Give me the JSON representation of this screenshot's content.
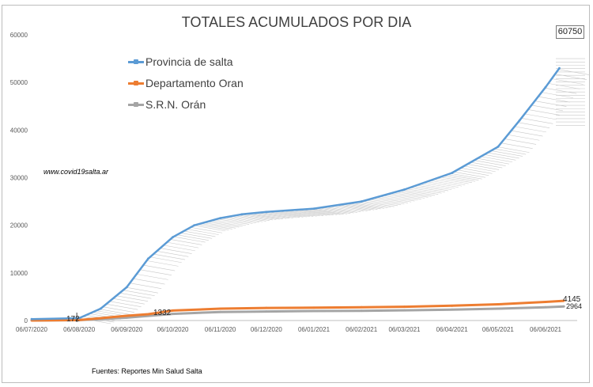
{
  "chart_data": {
    "type": "line",
    "title": "TOTALES ACUMULADOS POR DIA",
    "xlabel": "",
    "ylabel": "",
    "ylim": [
      0,
      60000
    ],
    "yticks": [
      0,
      10000,
      20000,
      30000,
      40000,
      50000,
      60000
    ],
    "xticks": [
      "06/07/2020",
      "06/08/2020",
      "06/09/2020",
      "06/10/2020",
      "06/11/2020",
      "06/12/2020",
      "06/01/2021",
      "06/02/2021",
      "06/03/2021",
      "06/04/2021",
      "06/05/2021",
      "06/06/2021"
    ],
    "legend_position": "top-left",
    "grid": false,
    "series": [
      {
        "name": "Provincia de salta",
        "color": "#5b9bd5",
        "x": [
          "06/07/2020",
          "06/08/2020",
          "20/08/2020",
          "06/09/2020",
          "20/09/2020",
          "06/10/2020",
          "20/10/2020",
          "06/11/2020",
          "20/11/2020",
          "06/12/2020",
          "06/01/2021",
          "06/02/2021",
          "06/03/2021",
          "06/04/2021",
          "06/05/2021",
          "20/05/2021",
          "06/06/2021",
          "15/06/2021"
        ],
        "values": [
          300,
          500,
          2500,
          7000,
          13000,
          17500,
          20000,
          21500,
          22300,
          22800,
          23500,
          25000,
          27500,
          31000,
          36500,
          42000,
          49000,
          53000
        ]
      },
      {
        "name": "Departamento Oran",
        "color": "#ed7d31",
        "x": [
          "06/07/2020",
          "06/08/2020",
          "20/08/2020",
          "06/09/2020",
          "20/09/2020",
          "06/10/2020",
          "06/11/2020",
          "06/12/2020",
          "06/01/2021",
          "06/02/2021",
          "06/03/2021",
          "06/04/2021",
          "06/05/2021",
          "06/06/2021",
          "18/06/2021"
        ],
        "values": [
          0,
          100,
          500,
          1000,
          1332,
          2100,
          2500,
          2650,
          2700,
          2800,
          2900,
          3100,
          3400,
          3900,
          4145
        ]
      },
      {
        "name": "S.R.N. Orán",
        "color": "#a5a5a5",
        "x": [
          "06/07/2020",
          "06/08/2020",
          "06/09/2020",
          "06/10/2020",
          "06/11/2020",
          "06/12/2020",
          "06/01/2021",
          "06/02/2021",
          "06/03/2021",
          "06/04/2021",
          "06/05/2021",
          "06/06/2021",
          "18/06/2021"
        ],
        "values": [
          0,
          80,
          600,
          1400,
          1800,
          1900,
          2000,
          2050,
          2150,
          2300,
          2500,
          2800,
          2964
        ]
      }
    ],
    "annotations": {
      "max_label": "60750",
      "prov_low": "172",
      "oran_mid": "1332",
      "oran_end": "4145",
      "srn_end": "2964"
    },
    "watermark": "www.covid19salta.ar",
    "source": "Fuentes: Reportes Min Salud Salta"
  }
}
